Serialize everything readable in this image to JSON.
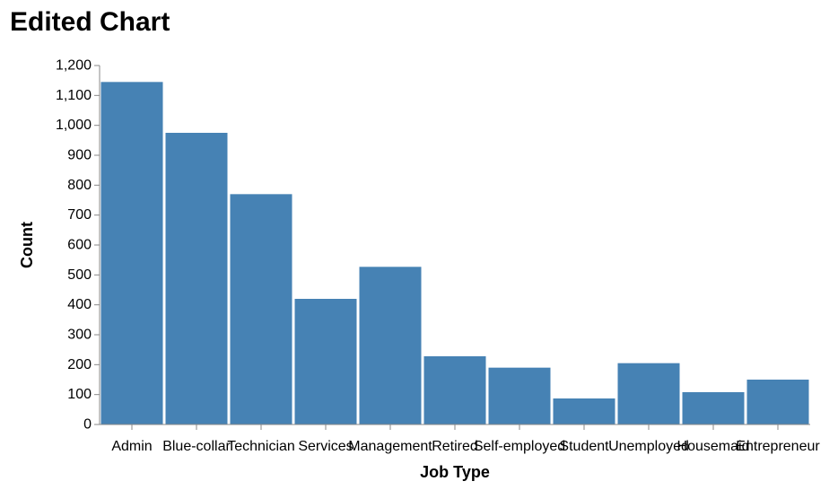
{
  "chart_data": {
    "type": "bar",
    "title": "Edited Chart",
    "xlabel": "Job Type",
    "ylabel": "Count",
    "categories": [
      "Admin",
      "Blue-collar",
      "Technician",
      "Services",
      "Management",
      "Retired",
      "Self-employed",
      "Student",
      "Unemployed",
      "Housemaid",
      "Entrepreneur"
    ],
    "values": [
      1145,
      975,
      770,
      420,
      527,
      228,
      190,
      87,
      205,
      108,
      150
    ],
    "ylim": [
      0,
      1200
    ],
    "yticks": [
      0,
      100,
      200,
      300,
      400,
      500,
      600,
      700,
      800,
      900,
      1000,
      1100,
      1200
    ],
    "ytick_labels": [
      "0",
      "100",
      "200",
      "300",
      "400",
      "500",
      "600",
      "700",
      "800",
      "900",
      "1,000",
      "1,100",
      "1,200"
    ],
    "grid": false,
    "colors": {
      "bar": "#4682b4",
      "axis": "#888888"
    }
  }
}
